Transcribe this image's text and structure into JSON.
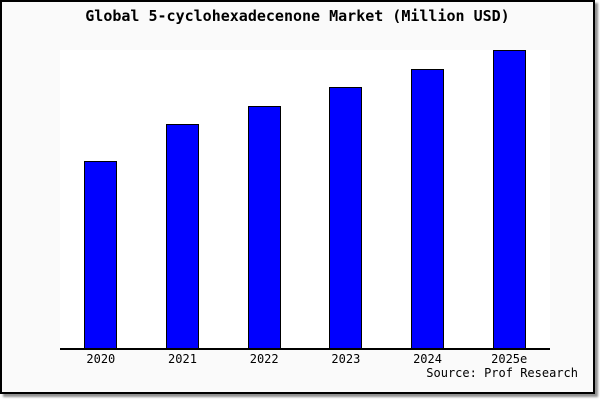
{
  "window": {
    "background_color": "#fafafa",
    "border_color": "#000000",
    "shadow_color": "#8f8f8f"
  },
  "chart_data": {
    "type": "bar",
    "title": "Global 5-cyclohexadecenone Market (Million USD)",
    "categories": [
      "2020",
      "2021",
      "2022",
      "2023",
      "2024",
      "2025e"
    ],
    "values": [
      62.7,
      75.2,
      81.3,
      87.5,
      93.7,
      100
    ],
    "values_note": "no numeric y-axis shown in image; values are bar heights normalized to 2025e = 100",
    "ylim": [
      0,
      100
    ],
    "xlabel": "",
    "ylabel": "",
    "grid": false,
    "legend": false,
    "y_axis_visible": false,
    "x_axis_line_color": "#000000",
    "plot_background": "#ffffff",
    "bar_color": "#0000ff",
    "bar_border_color": "#000000"
  },
  "footer": {
    "source_note": "Source: Prof Research"
  }
}
